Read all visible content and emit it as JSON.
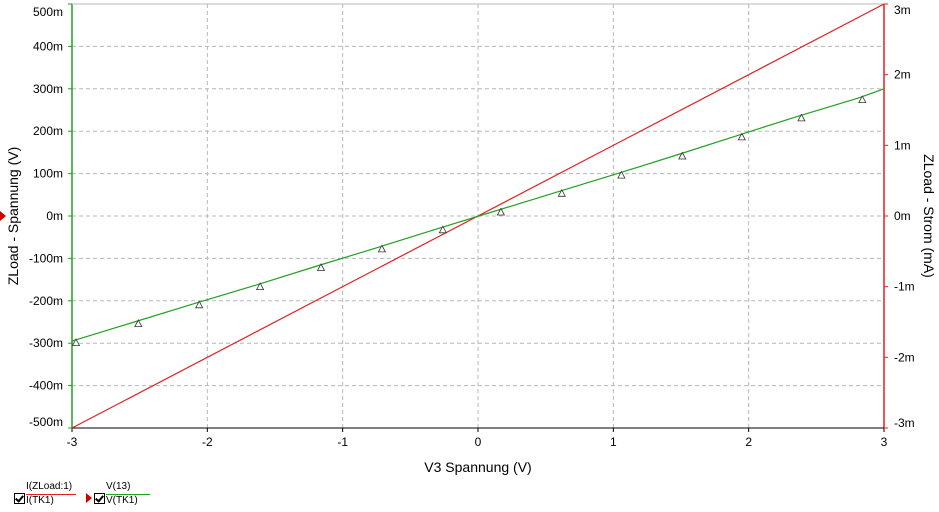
{
  "chart_data": {
    "type": "line",
    "xlabel": "V3 Spannung (V)",
    "ylabel_left": "ZLoad - Spannung (V)",
    "ylabel_right": "ZLoad - Strom (mA)",
    "xlim": [
      -3,
      3
    ],
    "ylim_left": [
      -0.5,
      0.5
    ],
    "ylim_right": [
      -3,
      3
    ],
    "x_ticks": [
      "-3",
      "-2",
      "-1",
      "0",
      "1",
      "2",
      "3"
    ],
    "y_left_ticks": [
      "500m",
      "400m",
      "300m",
      "200m",
      "100m",
      "0m",
      "-100m",
      "-200m",
      "-300m",
      "-400m",
      "-500m"
    ],
    "y_right_ticks": [
      "3m",
      "2m",
      "1m",
      "0m",
      "-1m",
      "-2m",
      "-3m"
    ],
    "grid": true,
    "series": [
      {
        "name": "I(ZLoad:1)",
        "axis": "right",
        "color": "#e02020",
        "x": [
          -3,
          0,
          3
        ],
        "y": [
          -3,
          0,
          3
        ]
      },
      {
        "name": "V(13)",
        "axis": "left",
        "color": "#22a022",
        "marker": "triangle",
        "x": [
          -3,
          -2.54,
          -2.09,
          -1.64,
          -1.19,
          -0.74,
          -0.29,
          0.14,
          0.59,
          1.03,
          1.48,
          1.92,
          2.36,
          2.81,
          3
        ],
        "y": [
          -0.295,
          -0.25,
          -0.206,
          -0.163,
          -0.118,
          -0.074,
          -0.029,
          0.013,
          0.057,
          0.1,
          0.145,
          0.19,
          0.235,
          0.278,
          0.3
        ]
      }
    ]
  },
  "legend": [
    {
      "top": "I(ZLoad:1)",
      "bottom": "I(TK1)",
      "color": "#e02020"
    },
    {
      "top": "V(13)",
      "bottom": "V(TK1)",
      "color": "#22a022"
    }
  ]
}
